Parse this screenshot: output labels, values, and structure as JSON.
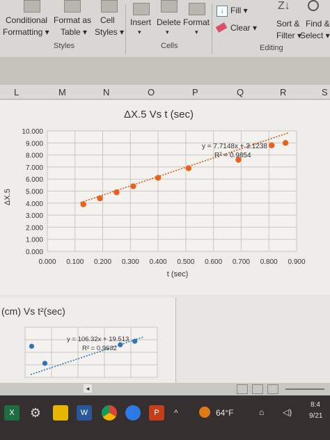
{
  "ribbon": {
    "conditional_formatting": [
      "Conditional",
      "Formatting ▾"
    ],
    "format_as_table": [
      "Format as",
      "Table ▾"
    ],
    "cell_styles": [
      "Cell",
      "Styles ▾"
    ],
    "styles_group": "Styles",
    "insert": "Insert",
    "delete": "Delete",
    "format": "Format",
    "cells_group": "Cells",
    "fill": "Fill ▾",
    "clear": "Clear ▾",
    "sort_filter": [
      "Sort &",
      "Filter ▾"
    ],
    "find_select": [
      "Find &",
      "Select ▾"
    ],
    "editing_group": "Editing"
  },
  "columns": [
    "L",
    "M",
    "N",
    "O",
    "P",
    "Q",
    "R",
    "S"
  ],
  "chart_data": [
    {
      "type": "scatter",
      "title": "ΔX.5 Vs t (sec)",
      "xlabel": "t (sec)",
      "ylabel": "ΔX.5",
      "xlim": [
        0,
        0.9
      ],
      "ylim": [
        0,
        10
      ],
      "x_ticks": [
        "0.000",
        "0.100",
        "0.200",
        "0.300",
        "0.400",
        "0.500",
        "0.600",
        "0.700",
        "0.800",
        "0.900"
      ],
      "y_ticks": [
        "0.000",
        "1.000",
        "2.000",
        "3.000",
        "4.000",
        "5.000",
        "6.000",
        "7.000",
        "8.000",
        "9.000",
        "10.000"
      ],
      "grid": true,
      "series": [
        {
          "x": [
            0.13,
            0.19,
            0.25,
            0.31,
            0.4,
            0.51,
            0.69,
            0.81,
            0.86
          ],
          "y": [
            3.9,
            4.4,
            4.9,
            5.4,
            6.1,
            6.9,
            7.6,
            8.8,
            9.0
          ]
        }
      ],
      "trendline": {
        "equation": "y = 7.7148x + 3.1238",
        "r2": "R² = 0.9854",
        "slope": 7.7148,
        "intercept": 3.1238
      },
      "colors": {
        "points": "#e8621b",
        "trend": "#d4561a",
        "plot_bg": "#f4f2ee",
        "grid": "#c8c6c1"
      }
    },
    {
      "type": "scatter",
      "title": "(cm) Vs t²(sec)",
      "series": [
        {
          "x": [
            0.05,
            0.15,
            0.72,
            0.83
          ],
          "y": [
            0.62,
            0.28,
            0.65,
            0.72
          ]
        }
      ],
      "trendline": {
        "equation": "y = 106.32x + 19.513",
        "r2": "R² = 0.9632"
      },
      "colors": {
        "points": "#2e75b6",
        "trend": "#2e75b6"
      }
    }
  ],
  "taskbar": {
    "weather": "64°F",
    "time": "8:4",
    "date": "9/21"
  }
}
